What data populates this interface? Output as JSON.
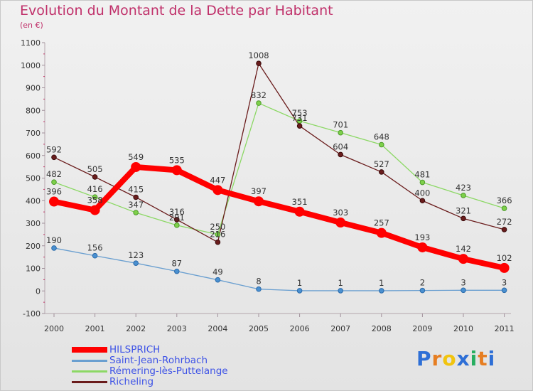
{
  "title": "Evolution du Montant de la Dette par Habitant",
  "subtitle": "(en €)",
  "logo": {
    "text": "Proxiti",
    "colors": [
      "#2e6fd6",
      "#e67e22",
      "#f1c40f",
      "#2e6fd6",
      "#27ae60",
      "#e67e22",
      "#2e6fd6"
    ]
  },
  "chart_data": {
    "type": "line",
    "x": [
      "2000",
      "2001",
      "2002",
      "2003",
      "2004",
      "2005",
      "2006",
      "2007",
      "2008",
      "2009",
      "2010",
      "2011"
    ],
    "ylim": [
      -100,
      1100
    ],
    "yticks": [
      -100,
      0,
      100,
      200,
      300,
      400,
      500,
      600,
      700,
      800,
      900,
      1000,
      1100
    ],
    "grid": false,
    "legend_position": "bottom-left",
    "series": [
      {
        "name": "HILSPRICH",
        "color": "#ff0000",
        "values": [
          396,
          358,
          549,
          535,
          447,
          397,
          351,
          303,
          257,
          193,
          142,
          102
        ]
      },
      {
        "name": "Saint-Jean-Rohrbach",
        "color": "#6a9fd0",
        "values": [
          190,
          156,
          123,
          87,
          49,
          8,
          1,
          1,
          1,
          2,
          3,
          3
        ]
      },
      {
        "name": "Rémering-lès-Puttelange",
        "color": "#8cd865",
        "values": [
          482,
          416,
          347,
          291,
          250,
          832,
          753,
          701,
          648,
          481,
          423,
          366
        ]
      },
      {
        "name": "Richeling",
        "color": "#6a1c1c",
        "values": [
          592,
          505,
          415,
          316,
          216,
          1008,
          731,
          604,
          527,
          400,
          321,
          272
        ]
      }
    ]
  }
}
